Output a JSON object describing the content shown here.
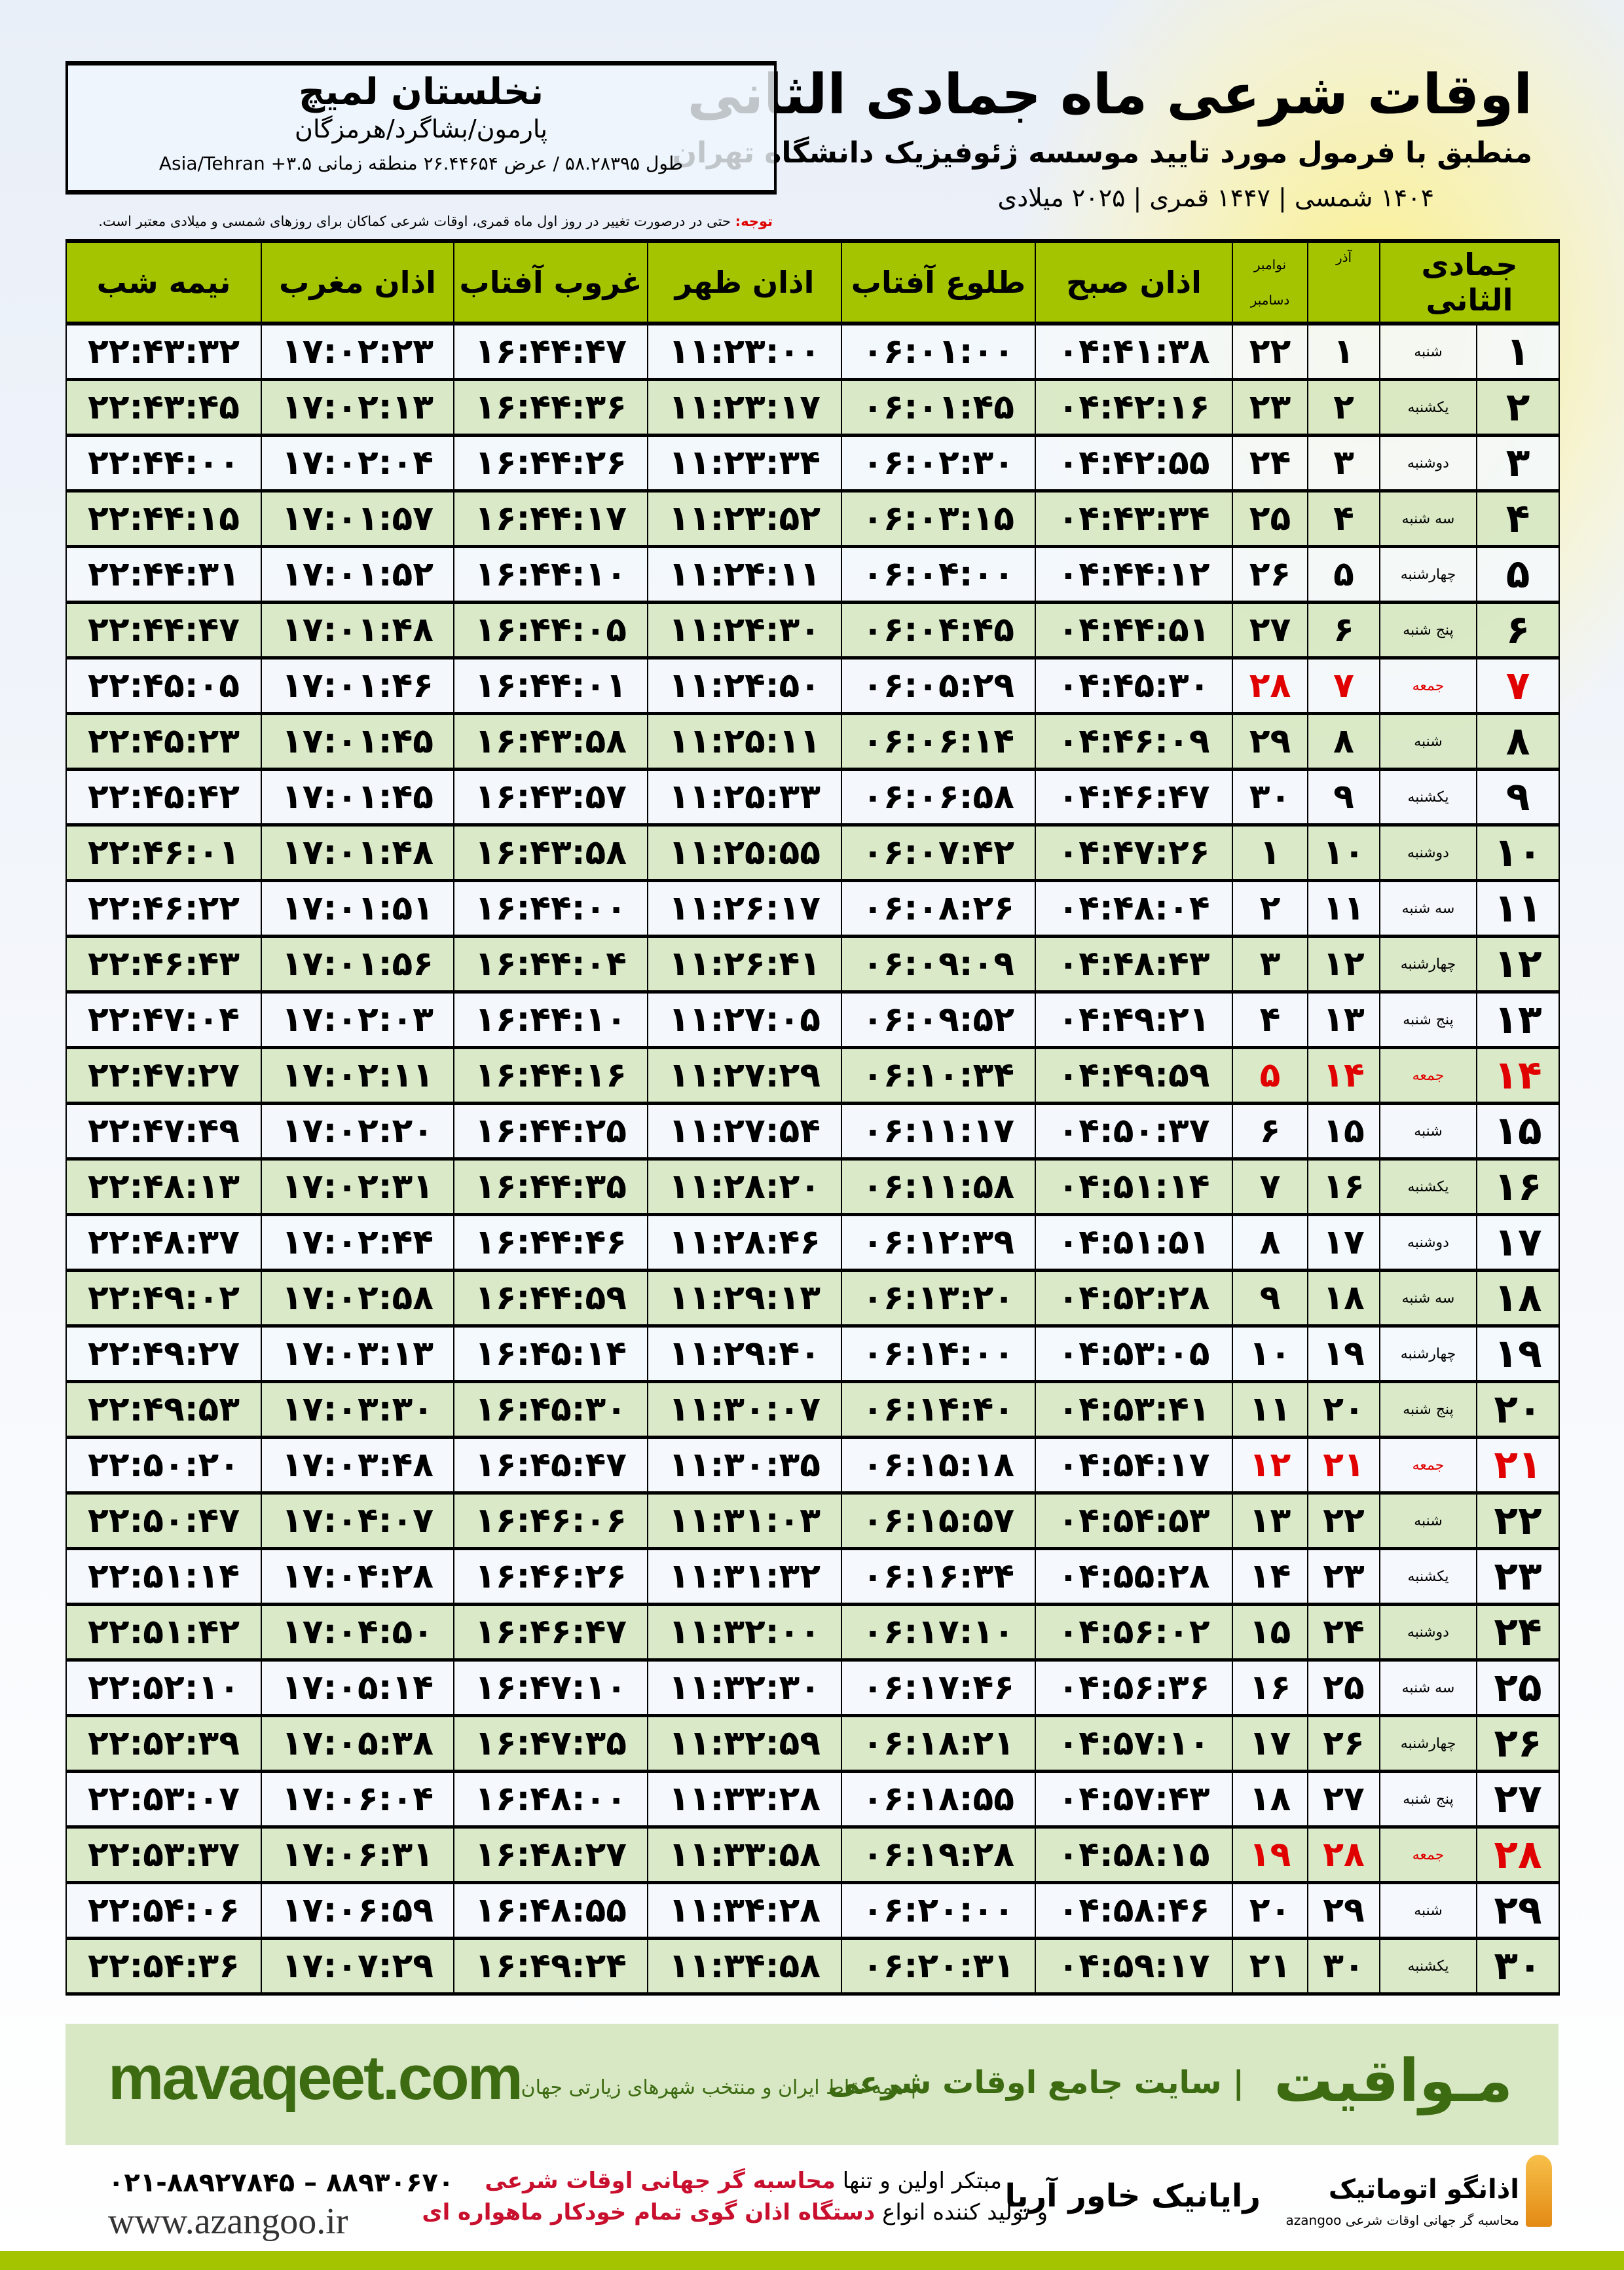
{
  "header": {
    "title": "اوقات شرعی ماه جمادی الثانی",
    "subtitle": "منطبق با فرمول مورد تایید موسسه ژئوفیزیک دانشگاه تهران",
    "years": "۱۴۰۴ شمسی | ۱۴۴۷ قمری | ۲۰۲۵ میلادی"
  },
  "location": {
    "name": "نخلستان لمیچ",
    "region": "پارمون/بشاگرد/هرمزگان",
    "coords": "طول ۵۸.۲۸۳۹۵ / عرض ۲۶.۴۴۶۵۴ منطقه زمانی Asia/Tehran +۳.۵"
  },
  "note": {
    "label": "توجه:",
    "text": " حتی در درصورت تغییر در روز اول ماه قمری، اوقات شرعی کماکان برای روزهای شمسی و میلادی معتبر است."
  },
  "table": {
    "columns": {
      "hijri": "جمادی الثانی",
      "azar": "آذر",
      "greg_top": "نوامبر",
      "greg_bottom": "دسامبر",
      "fajr": "اذان صبح",
      "sunrise": "طلوع آفتاب",
      "dhuhr": "اذان ظهر",
      "sunset": "غروب آفتاب",
      "maghrib": "اذان مغرب",
      "midnight": "نیمه شب"
    },
    "rows": [
      [
        "۱",
        "شنبه",
        "۱",
        "۲۲",
        "۰۴:۴۱:۳۸",
        "۰۶:۰۱:۰۰",
        "۱۱:۲۳:۰۰",
        "۱۶:۴۴:۴۷",
        "۱۷:۰۲:۲۳",
        "۲۲:۴۳:۳۲"
      ],
      [
        "۲",
        "یکشنبه",
        "۲",
        "۲۳",
        "۰۴:۴۲:۱۶",
        "۰۶:۰۱:۴۵",
        "۱۱:۲۳:۱۷",
        "۱۶:۴۴:۳۶",
        "۱۷:۰۲:۱۳",
        "۲۲:۴۳:۴۵"
      ],
      [
        "۳",
        "دوشنبه",
        "۳",
        "۲۴",
        "۰۴:۴۲:۵۵",
        "۰۶:۰۲:۳۰",
        "۱۱:۲۳:۳۴",
        "۱۶:۴۴:۲۶",
        "۱۷:۰۲:۰۴",
        "۲۲:۴۴:۰۰"
      ],
      [
        "۴",
        "سه شنبه",
        "۴",
        "۲۵",
        "۰۴:۴۳:۳۴",
        "۰۶:۰۳:۱۵",
        "۱۱:۲۳:۵۲",
        "۱۶:۴۴:۱۷",
        "۱۷:۰۱:۵۷",
        "۲۲:۴۴:۱۵"
      ],
      [
        "۵",
        "چهارشنبه",
        "۵",
        "۲۶",
        "۰۴:۴۴:۱۲",
        "۰۶:۰۴:۰۰",
        "۱۱:۲۴:۱۱",
        "۱۶:۴۴:۱۰",
        "۱۷:۰۱:۵۲",
        "۲۲:۴۴:۳۱"
      ],
      [
        "۶",
        "پنج شنبه",
        "۶",
        "۲۷",
        "۰۴:۴۴:۵۱",
        "۰۶:۰۴:۴۵",
        "۱۱:۲۴:۳۰",
        "۱۶:۴۴:۰۵",
        "۱۷:۰۱:۴۸",
        "۲۲:۴۴:۴۷"
      ],
      [
        "۷",
        "جمعه",
        "۷",
        "۲۸",
        "۰۴:۴۵:۳۰",
        "۰۶:۰۵:۲۹",
        "۱۱:۲۴:۵۰",
        "۱۶:۴۴:۰۱",
        "۱۷:۰۱:۴۶",
        "۲۲:۴۵:۰۵"
      ],
      [
        "۸",
        "شنبه",
        "۸",
        "۲۹",
        "۰۴:۴۶:۰۹",
        "۰۶:۰۶:۱۴",
        "۱۱:۲۵:۱۱",
        "۱۶:۴۳:۵۸",
        "۱۷:۰۱:۴۵",
        "۲۲:۴۵:۲۳"
      ],
      [
        "۹",
        "یکشنبه",
        "۹",
        "۳۰",
        "۰۴:۴۶:۴۷",
        "۰۶:۰۶:۵۸",
        "۱۱:۲۵:۳۳",
        "۱۶:۴۳:۵۷",
        "۱۷:۰۱:۴۵",
        "۲۲:۴۵:۴۲"
      ],
      [
        "۱۰",
        "دوشنبه",
        "۱۰",
        "۱",
        "۰۴:۴۷:۲۶",
        "۰۶:۰۷:۴۲",
        "۱۱:۲۵:۵۵",
        "۱۶:۴۳:۵۸",
        "۱۷:۰۱:۴۸",
        "۲۲:۴۶:۰۱"
      ],
      [
        "۱۱",
        "سه شنبه",
        "۱۱",
        "۲",
        "۰۴:۴۸:۰۴",
        "۰۶:۰۸:۲۶",
        "۱۱:۲۶:۱۷",
        "۱۶:۴۴:۰۰",
        "۱۷:۰۱:۵۱",
        "۲۲:۴۶:۲۲"
      ],
      [
        "۱۲",
        "چهارشنبه",
        "۱۲",
        "۳",
        "۰۴:۴۸:۴۳",
        "۰۶:۰۹:۰۹",
        "۱۱:۲۶:۴۱",
        "۱۶:۴۴:۰۴",
        "۱۷:۰۱:۵۶",
        "۲۲:۴۶:۴۳"
      ],
      [
        "۱۳",
        "پنج شنبه",
        "۱۳",
        "۴",
        "۰۴:۴۹:۲۱",
        "۰۶:۰۹:۵۲",
        "۱۱:۲۷:۰۵",
        "۱۶:۴۴:۱۰",
        "۱۷:۰۲:۰۳",
        "۲۲:۴۷:۰۴"
      ],
      [
        "۱۴",
        "جمعه",
        "۱۴",
        "۵",
        "۰۴:۴۹:۵۹",
        "۰۶:۱۰:۳۴",
        "۱۱:۲۷:۲۹",
        "۱۶:۴۴:۱۶",
        "۱۷:۰۲:۱۱",
        "۲۲:۴۷:۲۷"
      ],
      [
        "۱۵",
        "شنبه",
        "۱۵",
        "۶",
        "۰۴:۵۰:۳۷",
        "۰۶:۱۱:۱۷",
        "۱۱:۲۷:۵۴",
        "۱۶:۴۴:۲۵",
        "۱۷:۰۲:۲۰",
        "۲۲:۴۷:۴۹"
      ],
      [
        "۱۶",
        "یکشنبه",
        "۱۶",
        "۷",
        "۰۴:۵۱:۱۴",
        "۰۶:۱۱:۵۸",
        "۱۱:۲۸:۲۰",
        "۱۶:۴۴:۳۵",
        "۱۷:۰۲:۳۱",
        "۲۲:۴۸:۱۳"
      ],
      [
        "۱۷",
        "دوشنبه",
        "۱۷",
        "۸",
        "۰۴:۵۱:۵۱",
        "۰۶:۱۲:۳۹",
        "۱۱:۲۸:۴۶",
        "۱۶:۴۴:۴۶",
        "۱۷:۰۲:۴۴",
        "۲۲:۴۸:۳۷"
      ],
      [
        "۱۸",
        "سه شنبه",
        "۱۸",
        "۹",
        "۰۴:۵۲:۲۸",
        "۰۶:۱۳:۲۰",
        "۱۱:۲۹:۱۳",
        "۱۶:۴۴:۵۹",
        "۱۷:۰۲:۵۸",
        "۲۲:۴۹:۰۲"
      ],
      [
        "۱۹",
        "چهارشنبه",
        "۱۹",
        "۱۰",
        "۰۴:۵۳:۰۵",
        "۰۶:۱۴:۰۰",
        "۱۱:۲۹:۴۰",
        "۱۶:۴۵:۱۴",
        "۱۷:۰۳:۱۳",
        "۲۲:۴۹:۲۷"
      ],
      [
        "۲۰",
        "پنج شنبه",
        "۲۰",
        "۱۱",
        "۰۴:۵۳:۴۱",
        "۰۶:۱۴:۴۰",
        "۱۱:۳۰:۰۷",
        "۱۶:۴۵:۳۰",
        "۱۷:۰۳:۳۰",
        "۲۲:۴۹:۵۳"
      ],
      [
        "۲۱",
        "جمعه",
        "۲۱",
        "۱۲",
        "۰۴:۵۴:۱۷",
        "۰۶:۱۵:۱۸",
        "۱۱:۳۰:۳۵",
        "۱۶:۴۵:۴۷",
        "۱۷:۰۳:۴۸",
        "۲۲:۵۰:۲۰"
      ],
      [
        "۲۲",
        "شنبه",
        "۲۲",
        "۱۳",
        "۰۴:۵۴:۵۳",
        "۰۶:۱۵:۵۷",
        "۱۱:۳۱:۰۳",
        "۱۶:۴۶:۰۶",
        "۱۷:۰۴:۰۷",
        "۲۲:۵۰:۴۷"
      ],
      [
        "۲۳",
        "یکشنبه",
        "۲۳",
        "۱۴",
        "۰۴:۵۵:۲۸",
        "۰۶:۱۶:۳۴",
        "۱۱:۳۱:۳۲",
        "۱۶:۴۶:۲۶",
        "۱۷:۰۴:۲۸",
        "۲۲:۵۱:۱۴"
      ],
      [
        "۲۴",
        "دوشنبه",
        "۲۴",
        "۱۵",
        "۰۴:۵۶:۰۲",
        "۰۶:۱۷:۱۰",
        "۱۱:۳۲:۰۰",
        "۱۶:۴۶:۴۷",
        "۱۷:۰۴:۵۰",
        "۲۲:۵۱:۴۲"
      ],
      [
        "۲۵",
        "سه شنبه",
        "۲۵",
        "۱۶",
        "۰۴:۵۶:۳۶",
        "۰۶:۱۷:۴۶",
        "۱۱:۳۲:۳۰",
        "۱۶:۴۷:۱۰",
        "۱۷:۰۵:۱۴",
        "۲۲:۵۲:۱۰"
      ],
      [
        "۲۶",
        "چهارشنبه",
        "۲۶",
        "۱۷",
        "۰۴:۵۷:۱۰",
        "۰۶:۱۸:۲۱",
        "۱۱:۳۲:۵۹",
        "۱۶:۴۷:۳۵",
        "۱۷:۰۵:۳۸",
        "۲۲:۵۲:۳۹"
      ],
      [
        "۲۷",
        "پنج شنبه",
        "۲۷",
        "۱۸",
        "۰۴:۵۷:۴۳",
        "۰۶:۱۸:۵۵",
        "۱۱:۳۳:۲۸",
        "۱۶:۴۸:۰۰",
        "۱۷:۰۶:۰۴",
        "۲۲:۵۳:۰۷"
      ],
      [
        "۲۸",
        "جمعه",
        "۲۸",
        "۱۹",
        "۰۴:۵۸:۱۵",
        "۰۶:۱۹:۲۸",
        "۱۱:۳۳:۵۸",
        "۱۶:۴۸:۲۷",
        "۱۷:۰۶:۳۱",
        "۲۲:۵۳:۳۷"
      ],
      [
        "۲۹",
        "شنبه",
        "۲۹",
        "۲۰",
        "۰۴:۵۸:۴۶",
        "۰۶:۲۰:۰۰",
        "۱۱:۳۴:۲۸",
        "۱۶:۴۸:۵۵",
        "۱۷:۰۶:۵۹",
        "۲۲:۵۴:۰۶"
      ],
      [
        "۳۰",
        "یکشنبه",
        "۳۰",
        "۲۱",
        "۰۴:۵۹:۱۷",
        "۰۶:۲۰:۳۱",
        "۱۱:۳۴:۵۸",
        "۱۶:۴۹:۲۴",
        "۱۷:۰۷:۲۹",
        "۲۲:۵۴:۳۶"
      ]
    ],
    "holiday_weekday": "جمعه"
  },
  "footer": {
    "brand": "مـواقیت",
    "slogan": "| سایت جامع اوقات شرعی",
    "sub": "| همه نقاط ایران و منتخب شهرهای زیارتی جهان",
    "site": "mavaqeet.com"
  },
  "ads": {
    "phone": "۰۲۱-۸۸۹۲۷۸۴۵ – ۸۸۹۳۰۶۷۰",
    "www": "www.azangoo.ir",
    "line1_a": "مبتکر اولین و تنها ",
    "line1_b": "محاسبه گر جهانی اوقات شرعی",
    "line2_a": "و تولید کننده انواع ",
    "line2_b": "دستگاه اذان گوی تمام خودکار ماهواره ای",
    "rayanik": "رایانیک خاور آریا",
    "azangoo": "اذانگو اتوماتیک",
    "azangoo_sub": "محاسبه گر جهانی اوقات شرعی azangoo"
  },
  "colors": {
    "header_green": "#a5c400",
    "row_green": "#d8e8c4",
    "holiday_red": "#e00000",
    "brand_green": "#3d6b12"
  }
}
